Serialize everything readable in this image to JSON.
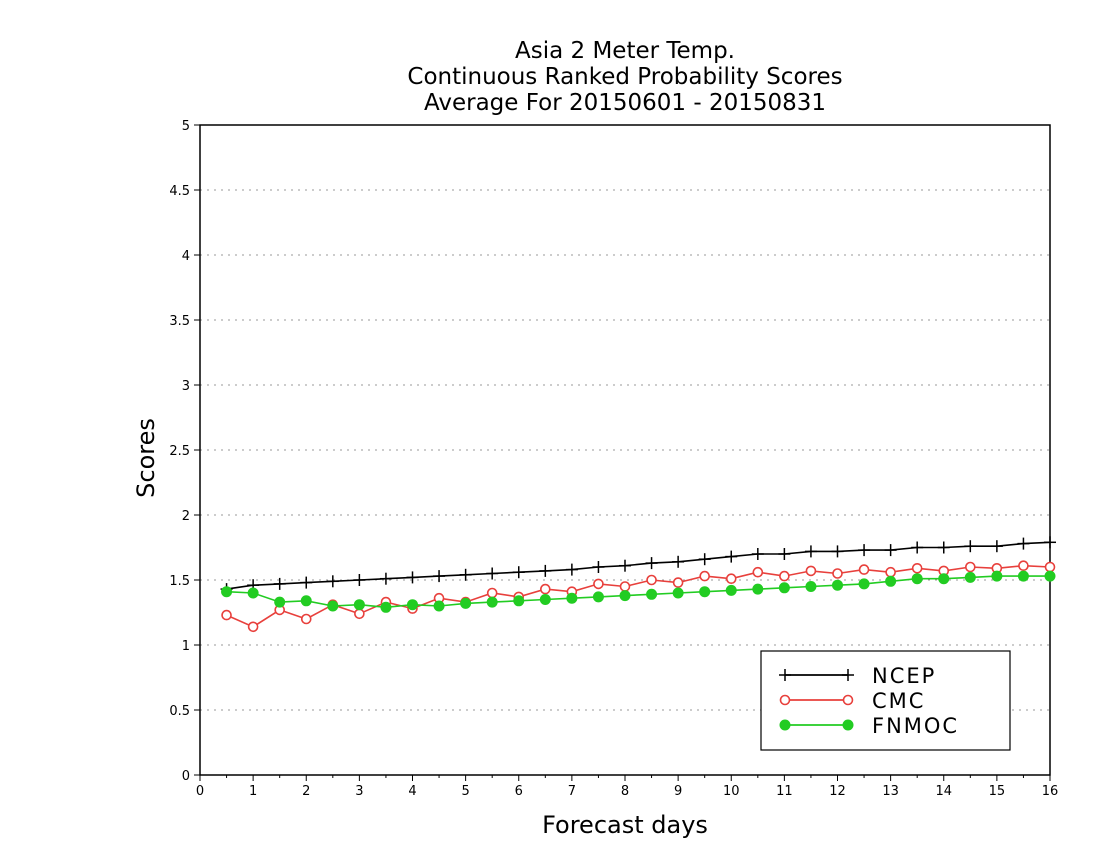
{
  "chart_data": {
    "type": "line",
    "title": [
      "Asia 2 Meter Temp.",
      "Continuous Ranked Probability Scores",
      "Average For 20150601 - 20150831"
    ],
    "xlabel": "Forecast days",
    "ylabel": "Scores",
    "xlim": [
      0,
      16
    ],
    "ylim": [
      0,
      5
    ],
    "x_ticks": [
      "0",
      "1",
      "2",
      "3",
      "4",
      "5",
      "6",
      "7",
      "8",
      "9",
      "10",
      "11",
      "12",
      "13",
      "14",
      "15",
      "16"
    ],
    "y_ticks": [
      "0",
      "0.5",
      "1",
      "1.5",
      "2",
      "2.5",
      "3",
      "3.5",
      "4",
      "4.5",
      "5"
    ],
    "grid": "horizontal dotted",
    "legend_position": "bottom-right",
    "x": [
      0.5,
      1,
      1.5,
      2,
      2.5,
      3,
      3.5,
      4,
      4.5,
      5,
      5.5,
      6,
      6.5,
      7,
      7.5,
      8,
      8.5,
      9,
      9.5,
      10,
      10.5,
      11,
      11.5,
      12,
      12.5,
      13,
      13.5,
      14,
      14.5,
      15,
      15.5,
      16
    ],
    "series": [
      {
        "name": "NCEP",
        "color": "#000000",
        "marker": "plus",
        "values": [
          1.43,
          1.46,
          1.47,
          1.48,
          1.49,
          1.5,
          1.51,
          1.52,
          1.53,
          1.54,
          1.55,
          1.56,
          1.57,
          1.58,
          1.6,
          1.61,
          1.63,
          1.64,
          1.66,
          1.68,
          1.7,
          1.7,
          1.72,
          1.72,
          1.73,
          1.73,
          1.75,
          1.75,
          1.76,
          1.76,
          1.78,
          1.79
        ]
      },
      {
        "name": "CMC",
        "color": "#e8403c",
        "marker": "open-circle",
        "values": [
          1.23,
          1.14,
          1.27,
          1.2,
          1.31,
          1.24,
          1.33,
          1.28,
          1.36,
          1.33,
          1.4,
          1.37,
          1.43,
          1.41,
          1.47,
          1.45,
          1.5,
          1.48,
          1.53,
          1.51,
          1.56,
          1.53,
          1.57,
          1.55,
          1.58,
          1.56,
          1.59,
          1.57,
          1.6,
          1.59,
          1.61,
          1.6
        ]
      },
      {
        "name": "FNMOC",
        "color": "#22cc22",
        "marker": "filled-circle",
        "values": [
          1.41,
          1.4,
          1.33,
          1.34,
          1.3,
          1.31,
          1.29,
          1.31,
          1.3,
          1.32,
          1.33,
          1.34,
          1.35,
          1.36,
          1.37,
          1.38,
          1.39,
          1.4,
          1.41,
          1.42,
          1.43,
          1.44,
          1.45,
          1.46,
          1.47,
          1.49,
          1.51,
          1.51,
          1.52,
          1.53,
          1.53,
          1.53
        ]
      }
    ]
  }
}
